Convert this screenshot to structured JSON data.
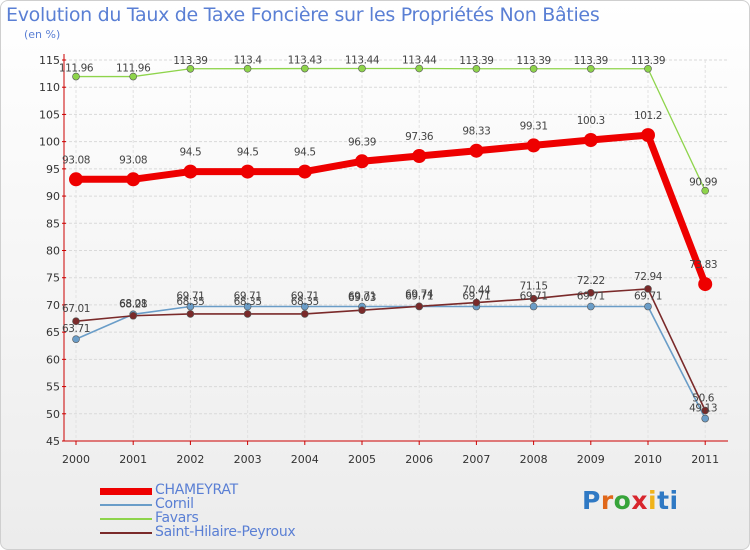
{
  "chart_data": {
    "type": "line",
    "title": "Evolution du Taux de Taxe Foncière sur les Propriétés Non Bâties",
    "subtitle": "(en %)",
    "xlabel": "",
    "ylabel": "",
    "categories": [
      "2000",
      "2001",
      "2002",
      "2003",
      "2004",
      "2005",
      "2006",
      "2007",
      "2008",
      "2009",
      "2010",
      "2011"
    ],
    "ylim": [
      45,
      115
    ],
    "yticks": [
      45,
      50,
      55,
      60,
      65,
      70,
      75,
      80,
      85,
      90,
      95,
      100,
      105,
      110,
      115
    ],
    "legend_position": "bottom-left",
    "series": [
      {
        "name": "CHAMEYRAT",
        "color": "#ee0000",
        "values": [
          93.08,
          93.08,
          94.5,
          94.5,
          94.5,
          96.39,
          97.36,
          98.33,
          99.31,
          100.3,
          101.2,
          73.83
        ],
        "labels": [
          "93.08",
          "93.08",
          "94.5",
          "94.5",
          "94.5",
          "96.39",
          "97.36",
          "98.33",
          "99.31",
          "100.3",
          "101.2",
          "73.83"
        ]
      },
      {
        "name": "Cornil",
        "color": "#6a9dc8",
        "values": [
          63.71,
          68.28,
          69.71,
          69.71,
          69.71,
          69.71,
          69.71,
          69.71,
          69.71,
          69.71,
          69.71,
          49.13
        ],
        "labels": [
          "63.71",
          "68.28",
          "69.71",
          "69.71",
          "69.71",
          "69.71",
          "69.71",
          "69.71",
          "69.71",
          "69.71",
          "69.71",
          "49.13"
        ]
      },
      {
        "name": "Favars",
        "color": "#8ed44b",
        "values": [
          111.96,
          111.96,
          113.39,
          113.4,
          113.43,
          113.44,
          113.44,
          113.39,
          113.39,
          113.39,
          113.39,
          90.99
        ],
        "labels": [
          "111.96",
          "111.96",
          "113.39",
          "113.4",
          "113.43",
          "113.44",
          "113.44",
          "113.39",
          "113.39",
          "113.39",
          "113.39",
          "90.99"
        ]
      },
      {
        "name": "Saint-Hilaire-Peyroux",
        "color": "#7a2a2a",
        "values": [
          67.01,
          68.01,
          68.35,
          68.35,
          68.35,
          69.03,
          69.74,
          70.44,
          71.15,
          72.22,
          72.94,
          50.6
        ],
        "labels": [
          "67.01",
          "68.01",
          "68.35",
          "68.35",
          "68.35",
          "69.03",
          "69.74",
          "70.44",
          "71.15",
          "72.22",
          "72.94",
          "50.6"
        ]
      }
    ]
  },
  "brand": {
    "letters": [
      "P",
      "r",
      "o",
      "x",
      "i",
      "ti"
    ]
  }
}
